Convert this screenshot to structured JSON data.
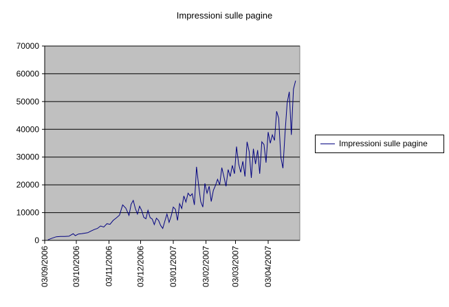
{
  "chart_data": {
    "type": "line",
    "title": "Impressioni sulle pagine",
    "xlabel": "",
    "ylabel": "",
    "ylim": [
      0,
      70000
    ],
    "yticks": [
      0,
      10000,
      20000,
      30000,
      40000,
      50000,
      60000,
      70000
    ],
    "ytick_labels": [
      "0",
      "10000",
      "20000",
      "30000",
      "40000",
      "50000",
      "60000",
      "70000"
    ],
    "xlim": [
      "2006-09-03",
      "2007-05-03"
    ],
    "xticks": [
      "2006-09-03",
      "2006-10-03",
      "2006-11-03",
      "2006-12-03",
      "2007-01-03",
      "2007-02-03",
      "2007-03-03",
      "2007-04-03"
    ],
    "xtick_labels": [
      "03/09/2006",
      "03/10/2006",
      "03/11/2006",
      "03/12/2006",
      "03/01/2007",
      "03/02/2007",
      "03/03/2007",
      "03/04/2007"
    ],
    "grid": "horizontal",
    "legend_position": "right",
    "plot_background": "#c0c0c0",
    "line_color": "#000080",
    "series": [
      {
        "name": "Impressioni sulle pagine",
        "x": [
          "2006-09-06",
          "2006-09-10",
          "2006-09-14",
          "2006-09-18",
          "2006-09-22",
          "2006-09-26",
          "2006-09-30",
          "2006-10-02",
          "2006-10-05",
          "2006-10-08",
          "2006-10-11",
          "2006-10-14",
          "2006-10-17",
          "2006-10-20",
          "2006-10-23",
          "2006-10-26",
          "2006-10-29",
          "2006-11-01",
          "2006-11-04",
          "2006-11-07",
          "2006-11-10",
          "2006-11-13",
          "2006-11-16",
          "2006-11-19",
          "2006-11-22",
          "2006-11-24",
          "2006-11-26",
          "2006-11-28",
          "2006-11-30",
          "2006-12-02",
          "2006-12-04",
          "2006-12-06",
          "2006-12-08",
          "2006-12-10",
          "2006-12-12",
          "2006-12-14",
          "2006-12-16",
          "2006-12-18",
          "2006-12-20",
          "2006-12-22",
          "2006-12-24",
          "2006-12-26",
          "2006-12-28",
          "2006-12-30",
          "2007-01-01",
          "2007-01-03",
          "2007-01-05",
          "2007-01-07",
          "2007-01-09",
          "2007-01-11",
          "2007-01-13",
          "2007-01-15",
          "2007-01-17",
          "2007-01-19",
          "2007-01-21",
          "2007-01-23",
          "2007-01-25",
          "2007-01-27",
          "2007-01-29",
          "2007-01-31",
          "2007-02-02",
          "2007-02-04",
          "2007-02-06",
          "2007-02-08",
          "2007-02-10",
          "2007-02-12",
          "2007-02-14",
          "2007-02-16",
          "2007-02-18",
          "2007-02-20",
          "2007-02-22",
          "2007-02-24",
          "2007-02-26",
          "2007-02-28",
          "2007-03-02",
          "2007-03-04",
          "2007-03-06",
          "2007-03-08",
          "2007-03-10",
          "2007-03-12",
          "2007-03-14",
          "2007-03-16",
          "2007-03-18",
          "2007-03-20",
          "2007-03-22",
          "2007-03-24",
          "2007-03-26",
          "2007-03-28",
          "2007-03-30",
          "2007-04-01",
          "2007-04-03",
          "2007-04-05",
          "2007-04-07",
          "2007-04-09",
          "2007-04-11",
          "2007-04-13",
          "2007-04-15",
          "2007-04-17",
          "2007-04-19",
          "2007-04-21",
          "2007-04-23",
          "2007-04-25",
          "2007-04-27",
          "2007-04-29"
        ],
        "y": [
          200,
          800,
          1300,
          1400,
          1400,
          1500,
          2400,
          1700,
          2300,
          2400,
          2600,
          2800,
          3400,
          3900,
          4300,
          5200,
          4800,
          6000,
          5800,
          7200,
          8100,
          9100,
          12800,
          11600,
          9000,
          13000,
          14400,
          11500,
          9500,
          12300,
          10800,
          8300,
          7800,
          10800,
          8200,
          7700,
          5700,
          8000,
          7200,
          5400,
          4300,
          7000,
          9500,
          6500,
          8800,
          12000,
          11200,
          7200,
          13200,
          11500,
          16000,
          13800,
          17000,
          16000,
          16800,
          12800,
          26500,
          20000,
          14000,
          12000,
          20500,
          17000,
          19500,
          14000,
          18000,
          19800,
          22000,
          20000,
          26200,
          23000,
          19500,
          25500,
          23000,
          27000,
          24000,
          33800,
          27500,
          24500,
          28500,
          23000,
          35500,
          32000,
          22500,
          33000,
          27500,
          32500,
          24000,
          35500,
          34500,
          28000,
          39000,
          35000,
          38000,
          36000,
          46500,
          44000,
          30000,
          26000,
          38500,
          49500,
          53500,
          38000,
          54500,
          57500
        ]
      }
    ]
  }
}
